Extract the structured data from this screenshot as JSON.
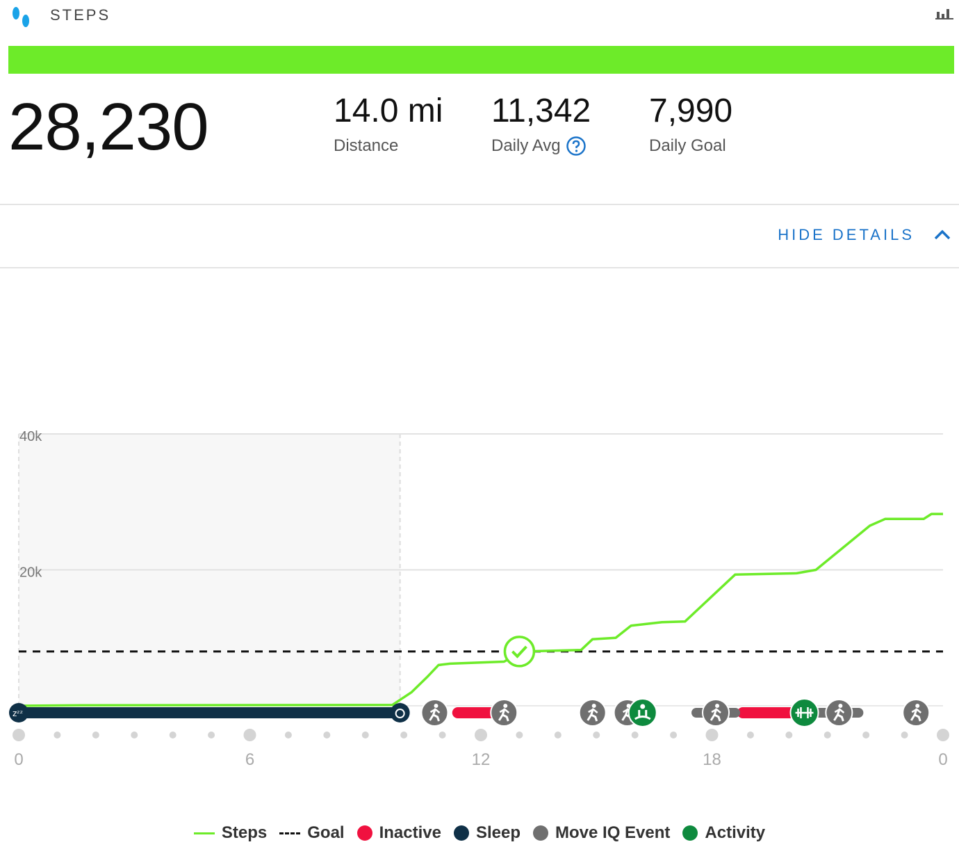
{
  "header": {
    "title": "STEPS",
    "icons": [
      "footsteps-icon",
      "bar-chart-icon"
    ]
  },
  "progress": {
    "goal_met_fraction": 1.0,
    "color": "#6deb29"
  },
  "summary": {
    "total_steps": "28,230",
    "distance": {
      "value": "14.0 mi",
      "label": "Distance"
    },
    "daily_avg": {
      "value": "11,342",
      "label": "Daily Avg"
    },
    "daily_goal": {
      "value": "7,990",
      "label": "Daily Goal"
    }
  },
  "details_toggle": {
    "label": "HIDE DETAILS"
  },
  "chart_data": {
    "type": "line",
    "x_ticks": [
      "0",
      "6",
      "12",
      "18",
      "0"
    ],
    "y_ticks": [
      "40k",
      "20k"
    ],
    "ylim": [
      0,
      40000
    ],
    "xlim": [
      0,
      24
    ],
    "goal": 7990,
    "steps": [
      {
        "x": 0,
        "y": 0
      },
      {
        "x": 1.6,
        "y": 80
      },
      {
        "x": 9.7,
        "y": 120
      },
      {
        "x": 10.2,
        "y": 2000
      },
      {
        "x": 10.6,
        "y": 4200
      },
      {
        "x": 10.9,
        "y": 6000
      },
      {
        "x": 11.2,
        "y": 6200
      },
      {
        "x": 12.6,
        "y": 6500
      },
      {
        "x": 13.1,
        "y": 7990
      },
      {
        "x": 14.6,
        "y": 8200
      },
      {
        "x": 14.9,
        "y": 9800
      },
      {
        "x": 15.5,
        "y": 10000
      },
      {
        "x": 15.9,
        "y": 11800
      },
      {
        "x": 16.7,
        "y": 12300
      },
      {
        "x": 17.3,
        "y": 12400
      },
      {
        "x": 18.6,
        "y": 19300
      },
      {
        "x": 20.2,
        "y": 19500
      },
      {
        "x": 20.7,
        "y": 20000
      },
      {
        "x": 22.1,
        "y": 26500
      },
      {
        "x": 22.5,
        "y": 27500
      },
      {
        "x": 23.5,
        "y": 27500
      },
      {
        "x": 23.7,
        "y": 28230
      },
      {
        "x": 24,
        "y": 28230
      }
    ],
    "sleep": [
      0,
      9.9
    ],
    "inactive": [
      [
        11.4,
        12.5
      ],
      [
        18.8,
        20.3
      ]
    ],
    "move_iq_events": [
      10.8,
      12.6,
      14.9,
      15.8,
      18.1,
      21.3,
      23.3
    ],
    "activities": [
      {
        "x": 16.2,
        "icon": "meditation-icon"
      },
      {
        "x": 20.4,
        "icon": "dumbbell-icon"
      }
    ],
    "goal_reached_x": 13.0,
    "legend": [
      "Steps",
      "Goal",
      "Inactive",
      "Sleep",
      "Move IQ Event",
      "Activity"
    ],
    "colors": {
      "steps": "#6deb29",
      "goal": "#111111",
      "inactive": "#f0113f",
      "sleep": "#0f3047",
      "move_iq": "#6f6f6f",
      "activity": "#0e8a3e"
    }
  }
}
